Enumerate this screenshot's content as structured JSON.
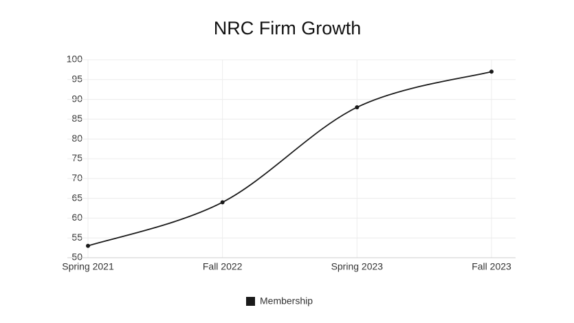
{
  "chart_data": {
    "type": "line",
    "title": "NRC Firm Growth",
    "categories": [
      "Spring 2021",
      "Fall 2022",
      "Spring 2023",
      "Fall 2023"
    ],
    "series": [
      {
        "name": "Membership",
        "color": "#1a1a1a",
        "values": [
          53,
          64,
          88,
          97
        ]
      }
    ],
    "ylim": [
      50,
      100
    ],
    "yticks": [
      50,
      55,
      60,
      65,
      70,
      75,
      80,
      85,
      90,
      95,
      100
    ],
    "grid": true,
    "legend": "bottom"
  }
}
